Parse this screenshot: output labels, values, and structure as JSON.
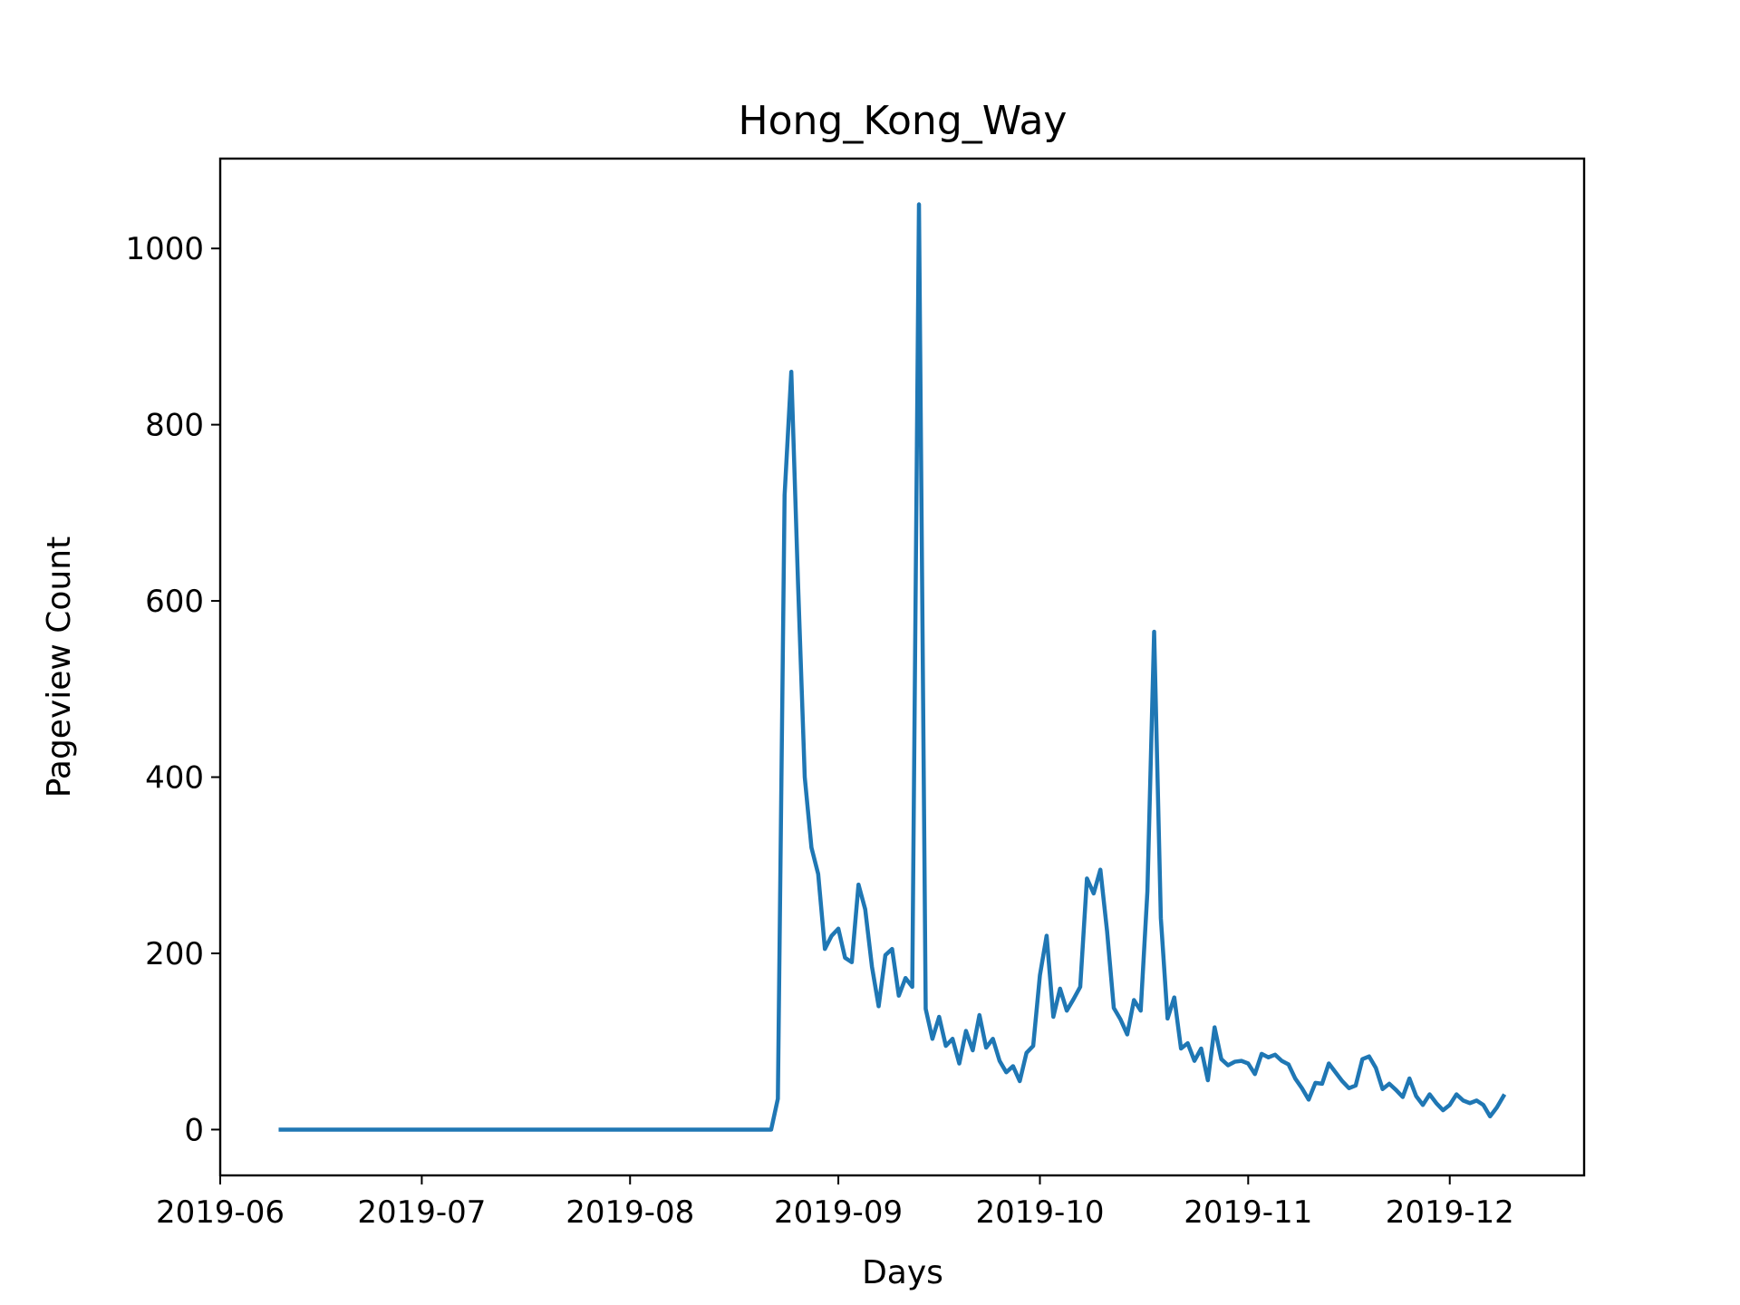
{
  "chart_data": {
    "type": "line",
    "title": "Hong_Kong_Way",
    "xlabel": "Days",
    "ylabel": "Pageview Count",
    "xlim": [
      "2019-06-01",
      "2019-12-21"
    ],
    "ylim": [
      -52,
      1102
    ],
    "x_ticks": [
      "2019-06",
      "2019-07",
      "2019-08",
      "2019-09",
      "2019-10",
      "2019-11",
      "2019-12"
    ],
    "y_ticks": [
      0,
      200,
      400,
      600,
      800,
      1000
    ],
    "grid": false,
    "legend": "none",
    "colors": {
      "line": "#1f77b4",
      "frame": "#000000"
    },
    "series": [
      {
        "x": [
          "2019-06-10",
          "2019-06-15",
          "2019-06-20",
          "2019-06-25",
          "2019-06-30",
          "2019-07-05",
          "2019-07-10",
          "2019-07-15",
          "2019-07-20",
          "2019-07-25",
          "2019-07-30",
          "2019-08-04",
          "2019-08-09",
          "2019-08-14",
          "2019-08-19",
          "2019-08-22",
          "2019-08-23",
          "2019-08-24",
          "2019-08-25",
          "2019-08-26",
          "2019-08-27",
          "2019-08-28",
          "2019-08-29",
          "2019-08-30",
          "2019-08-31",
          "2019-09-01",
          "2019-09-02",
          "2019-09-03",
          "2019-09-04",
          "2019-09-05",
          "2019-09-06",
          "2019-09-07",
          "2019-09-08",
          "2019-09-09",
          "2019-09-10",
          "2019-09-11",
          "2019-09-12",
          "2019-09-13",
          "2019-09-14",
          "2019-09-15",
          "2019-09-16",
          "2019-09-17",
          "2019-09-18",
          "2019-09-19",
          "2019-09-20",
          "2019-09-21",
          "2019-09-22",
          "2019-09-23",
          "2019-09-24",
          "2019-09-25",
          "2019-09-26",
          "2019-09-27",
          "2019-09-28",
          "2019-09-29",
          "2019-09-30",
          "2019-10-01",
          "2019-10-02",
          "2019-10-03",
          "2019-10-04",
          "2019-10-05",
          "2019-10-06",
          "2019-10-07",
          "2019-10-08",
          "2019-10-09",
          "2019-10-10",
          "2019-10-11",
          "2019-10-12",
          "2019-10-13",
          "2019-10-14",
          "2019-10-15",
          "2019-10-16",
          "2019-10-17",
          "2019-10-18",
          "2019-10-19",
          "2019-10-20",
          "2019-10-21",
          "2019-10-22",
          "2019-10-23",
          "2019-10-24",
          "2019-10-25",
          "2019-10-26",
          "2019-10-27",
          "2019-10-28",
          "2019-10-29",
          "2019-10-30",
          "2019-10-31",
          "2019-11-01",
          "2019-11-02",
          "2019-11-03",
          "2019-11-04",
          "2019-11-05",
          "2019-11-06",
          "2019-11-07",
          "2019-11-08",
          "2019-11-09",
          "2019-11-10",
          "2019-11-11",
          "2019-11-12",
          "2019-11-13",
          "2019-11-14",
          "2019-11-15",
          "2019-11-16",
          "2019-11-17",
          "2019-11-18",
          "2019-11-19",
          "2019-11-20",
          "2019-11-21",
          "2019-11-22",
          "2019-11-23",
          "2019-11-24",
          "2019-11-25",
          "2019-11-26",
          "2019-11-27",
          "2019-11-28",
          "2019-11-29",
          "2019-11-30",
          "2019-12-01",
          "2019-12-02",
          "2019-12-03",
          "2019-12-04",
          "2019-12-05",
          "2019-12-06",
          "2019-12-07",
          "2019-12-08",
          "2019-12-09"
        ],
        "values": [
          0,
          0,
          0,
          0,
          0,
          0,
          0,
          0,
          0,
          0,
          0,
          0,
          0,
          0,
          0,
          0,
          35,
          720,
          860,
          620,
          400,
          320,
          290,
          205,
          220,
          228,
          195,
          190,
          278,
          250,
          185,
          140,
          198,
          205,
          152,
          172,
          162,
          1050,
          137,
          103,
          128,
          95,
          103,
          75,
          112,
          90,
          130,
          93,
          103,
          78,
          65,
          72,
          55,
          87,
          95,
          175,
          220,
          128,
          160,
          135,
          148,
          162,
          285,
          268,
          295,
          225,
          138,
          125,
          108,
          147,
          135,
          270,
          565,
          240,
          126,
          150,
          92,
          98,
          78,
          92,
          56,
          116,
          80,
          73,
          77,
          78,
          75,
          63,
          86,
          82,
          85,
          78,
          74,
          58,
          47,
          34,
          53,
          52,
          75,
          65,
          55,
          47,
          50,
          80,
          83,
          70,
          46,
          52,
          45,
          37,
          58,
          38,
          28,
          40,
          30,
          22,
          28,
          40,
          33,
          30,
          33,
          28,
          15,
          25,
          38
        ]
      }
    ]
  }
}
